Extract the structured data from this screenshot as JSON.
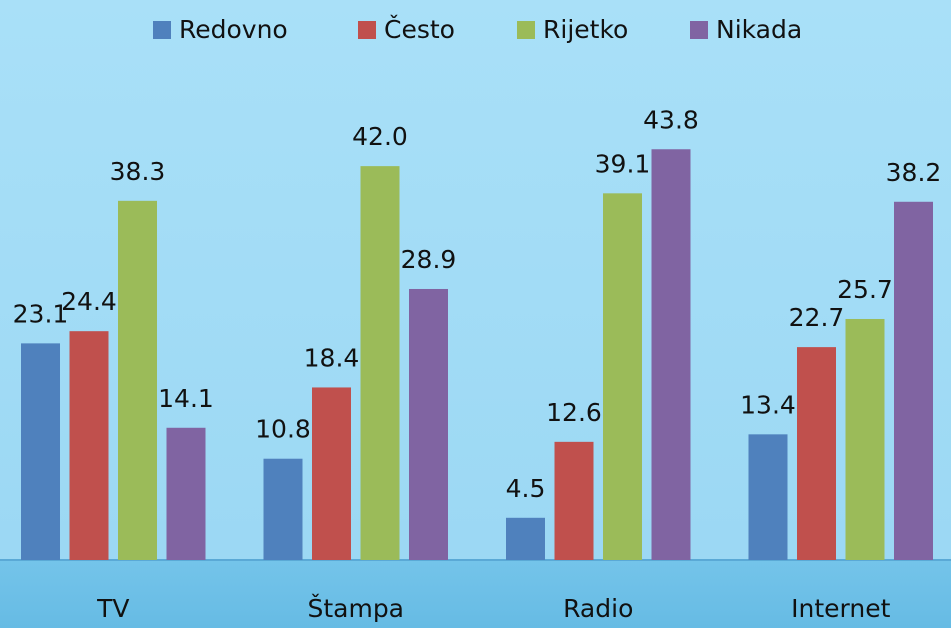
{
  "chart_data": {
    "type": "bar",
    "categories": [
      "TV",
      "Štampa",
      "Radio",
      "Internet"
    ],
    "series": [
      {
        "name": "Redovno",
        "color": "#4f81bd",
        "values": [
          23.1,
          10.8,
          4.5,
          13.4
        ],
        "value_labels": [
          "23.1",
          "10.8",
          "4.5",
          "13.4"
        ]
      },
      {
        "name": "Često",
        "color": "#c0504d",
        "values": [
          24.4,
          18.4,
          12.6,
          22.7
        ],
        "value_labels": [
          "24.4",
          "18.4",
          "12.6",
          "22.7"
        ]
      },
      {
        "name": "Rijetko",
        "color": "#9bbb59",
        "values": [
          38.3,
          42.0,
          39.1,
          25.7
        ],
        "value_labels": [
          "38.3",
          "42.0",
          "39.1",
          "25.7"
        ]
      },
      {
        "name": "Nikada",
        "color": "#8064a2",
        "values": [
          14.1,
          28.9,
          43.8,
          38.2
        ],
        "value_labels": [
          "14.1",
          "28.9",
          "43.8",
          "38.2"
        ]
      }
    ],
    "ylim": [
      0,
      45
    ],
    "legend": "top"
  }
}
